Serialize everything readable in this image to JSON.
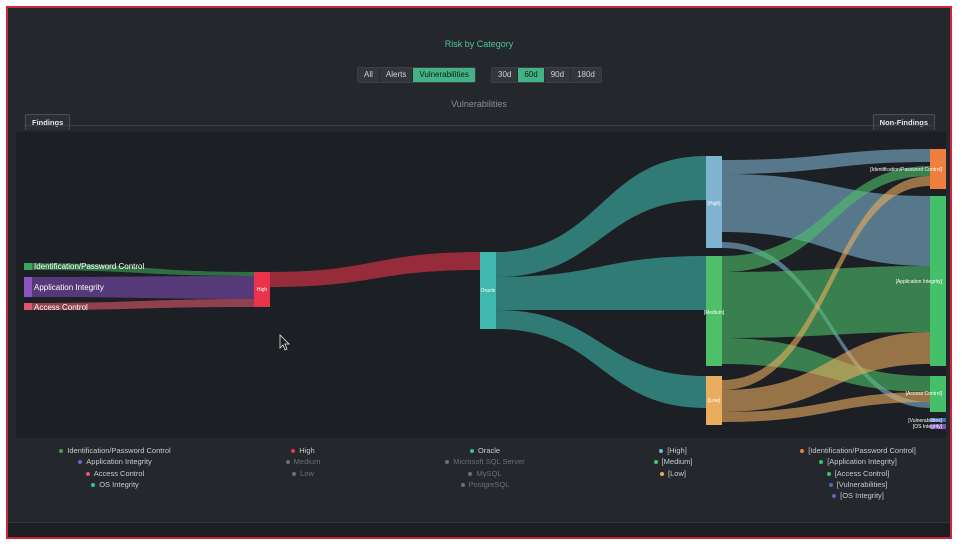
{
  "title": "Risk by Category",
  "type_filters": [
    {
      "label": "All",
      "active": false
    },
    {
      "label": "Alerts",
      "active": false
    },
    {
      "label": "Vulnerabilities",
      "active": true
    }
  ],
  "range_filters": [
    {
      "label": "30d",
      "active": false
    },
    {
      "label": "60d",
      "active": true
    },
    {
      "label": "90d",
      "active": false
    },
    {
      "label": "180d",
      "active": false
    }
  ],
  "subtitle": "Vulnerabilities",
  "tabs": {
    "left": "Findings",
    "right": "Non-Findings"
  },
  "colors": {
    "accent": "#43b286",
    "background": "#24272b",
    "frame": "#d0243a",
    "idpw": "#3da55a",
    "appint": "#7b4bb0",
    "access": "#e0566c",
    "high_sev": "#e8334a",
    "oracle": "#3fb9ad",
    "sev_high": "#7fb3cf",
    "sev_medium": "#4fbf6a",
    "sev_low": "#e9ad5f",
    "cat_idpw": "#ef7f3f",
    "cat_app": "#45c06a",
    "cat_access": "#45c06a",
    "cat_vuln": "#4b6fb5",
    "cat_os": "#7c55b5"
  },
  "nodes": {
    "idpw": "Identification/Password Control",
    "appint": "Application Integrity",
    "access": "Access Control",
    "high": "High",
    "oracle": "Oracle",
    "sev_high": "[High]",
    "sev_medium": "[Medium]",
    "sev_low": "[Low]",
    "t_idpw": "[Identification/Password Control]",
    "t_app": "[Application Integrity]",
    "t_access": "[Access Control]",
    "t_vuln": "[Vulnerabilities]",
    "t_os": "[OS Integrity]"
  },
  "legend": [
    {
      "items": [
        {
          "label": "Identification/Password Control",
          "color": "#3da55a",
          "dim": false
        },
        {
          "label": "Application Integrity",
          "color": "#8b55c4",
          "dim": false
        },
        {
          "label": "Access Control",
          "color": "#e0566c",
          "dim": false
        },
        {
          "label": "OS Integrity",
          "color": "#3fb9ad",
          "dim": false
        }
      ]
    },
    {
      "items": [
        {
          "label": "High",
          "color": "#e8334a",
          "dim": false
        },
        {
          "label": "Medium",
          "color": "#6a7078",
          "dim": true
        },
        {
          "label": "Low",
          "color": "#6a7078",
          "dim": true
        }
      ]
    },
    {
      "items": [
        {
          "label": "Oracle",
          "color": "#3fb9ad",
          "dim": false
        },
        {
          "label": "Microsoft SQL Server",
          "color": "#6a7078",
          "dim": true
        },
        {
          "label": "MySQL",
          "color": "#6a7078",
          "dim": true
        },
        {
          "label": "PostgreSQL",
          "color": "#6a7078",
          "dim": true
        }
      ]
    },
    {
      "items": [
        {
          "label": "[High]",
          "color": "#7fb3cf",
          "dim": false
        },
        {
          "label": "[Medium]",
          "color": "#4fbf6a",
          "dim": false
        },
        {
          "label": "[Low]",
          "color": "#e9ad5f",
          "dim": false
        }
      ]
    },
    {
      "items": [
        {
          "label": "[Identification/Password Control]",
          "color": "#ef7f3f",
          "dim": false
        },
        {
          "label": "[Application Integrity]",
          "color": "#45c06a",
          "dim": false
        },
        {
          "label": "[Access Control]",
          "color": "#45c06a",
          "dim": false
        },
        {
          "label": "[Vulnerabilities]",
          "color": "#4b6fb5",
          "dim": false
        },
        {
          "label": "[OS Integrity]",
          "color": "#7c55b5",
          "dim": false
        }
      ]
    }
  ]
}
